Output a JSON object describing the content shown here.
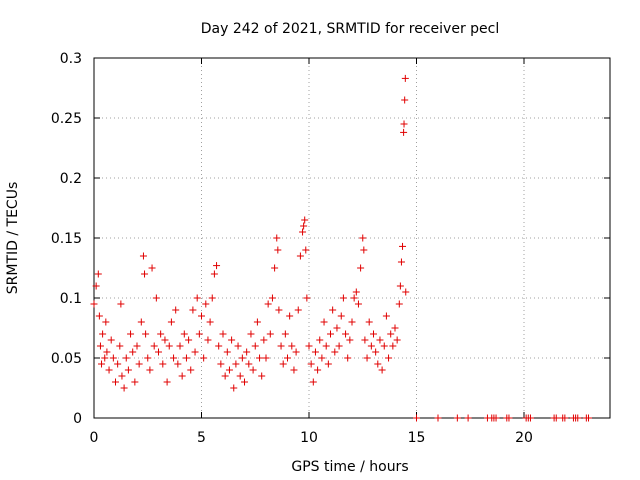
{
  "chart_data": {
    "type": "scatter",
    "title": "Day 242 of 2021, SRMTID for receiver pecl",
    "xlabel": "GPS time / hours",
    "ylabel": "SRMTID / TECUs",
    "xlim": [
      0,
      24
    ],
    "ylim": [
      0,
      0.3
    ],
    "x_ticks": [
      0,
      5,
      10,
      15,
      20
    ],
    "x_tick_labels": [
      "0",
      "5",
      "10",
      "15",
      "20"
    ],
    "y_ticks": [
      0,
      0.05,
      0.1,
      0.15,
      0.2,
      0.25,
      0.3
    ],
    "y_tick_labels": [
      "0",
      "0.05",
      "0.1",
      "0.15",
      "0.2",
      "0.25",
      "0.3"
    ],
    "grid": true,
    "marker": "+",
    "marker_color": "#e00000",
    "series": [
      {
        "name": "SRMTID",
        "points": [
          [
            0.0,
            0.095
          ],
          [
            0.1,
            0.11
          ],
          [
            0.2,
            0.12
          ],
          [
            0.25,
            0.085
          ],
          [
            0.3,
            0.06
          ],
          [
            0.35,
            0.045
          ],
          [
            0.4,
            0.07
          ],
          [
            0.5,
            0.05
          ],
          [
            0.55,
            0.08
          ],
          [
            0.6,
            0.055
          ],
          [
            0.7,
            0.04
          ],
          [
            0.8,
            0.065
          ],
          [
            0.9,
            0.05
          ],
          [
            1.0,
            0.03
          ],
          [
            1.1,
            0.045
          ],
          [
            1.2,
            0.06
          ],
          [
            1.25,
            0.095
          ],
          [
            1.3,
            0.035
          ],
          [
            1.4,
            0.025
          ],
          [
            1.5,
            0.05
          ],
          [
            1.6,
            0.04
          ],
          [
            1.7,
            0.07
          ],
          [
            1.8,
            0.055
          ],
          [
            1.9,
            0.03
          ],
          [
            2.0,
            0.06
          ],
          [
            2.1,
            0.045
          ],
          [
            2.2,
            0.08
          ],
          [
            2.3,
            0.135
          ],
          [
            2.35,
            0.12
          ],
          [
            2.4,
            0.07
          ],
          [
            2.5,
            0.05
          ],
          [
            2.6,
            0.04
          ],
          [
            2.7,
            0.125
          ],
          [
            2.8,
            0.06
          ],
          [
            2.9,
            0.1
          ],
          [
            3.0,
            0.055
          ],
          [
            3.1,
            0.07
          ],
          [
            3.2,
            0.045
          ],
          [
            3.3,
            0.065
          ],
          [
            3.4,
            0.03
          ],
          [
            3.5,
            0.06
          ],
          [
            3.6,
            0.08
          ],
          [
            3.7,
            0.05
          ],
          [
            3.8,
            0.09
          ],
          [
            3.9,
            0.045
          ],
          [
            4.0,
            0.06
          ],
          [
            4.1,
            0.035
          ],
          [
            4.2,
            0.07
          ],
          [
            4.3,
            0.05
          ],
          [
            4.4,
            0.065
          ],
          [
            4.5,
            0.04
          ],
          [
            4.6,
            0.09
          ],
          [
            4.7,
            0.055
          ],
          [
            4.8,
            0.1
          ],
          [
            4.9,
            0.07
          ],
          [
            5.0,
            0.085
          ],
          [
            5.1,
            0.05
          ],
          [
            5.2,
            0.095
          ],
          [
            5.3,
            0.065
          ],
          [
            5.4,
            0.08
          ],
          [
            5.5,
            0.1
          ],
          [
            5.6,
            0.12
          ],
          [
            5.7,
            0.127
          ],
          [
            5.8,
            0.06
          ],
          [
            5.9,
            0.045
          ],
          [
            6.0,
            0.07
          ],
          [
            6.1,
            0.035
          ],
          [
            6.2,
            0.055
          ],
          [
            6.3,
            0.04
          ],
          [
            6.4,
            0.065
          ],
          [
            6.5,
            0.025
          ],
          [
            6.6,
            0.045
          ],
          [
            6.7,
            0.06
          ],
          [
            6.8,
            0.035
          ],
          [
            6.9,
            0.05
          ],
          [
            7.0,
            0.03
          ],
          [
            7.1,
            0.055
          ],
          [
            7.2,
            0.045
          ],
          [
            7.3,
            0.07
          ],
          [
            7.4,
            0.04
          ],
          [
            7.5,
            0.06
          ],
          [
            7.6,
            0.08
          ],
          [
            7.7,
            0.05
          ],
          [
            7.8,
            0.035
          ],
          [
            7.9,
            0.065
          ],
          [
            8.0,
            0.05
          ],
          [
            8.1,
            0.095
          ],
          [
            8.2,
            0.07
          ],
          [
            8.3,
            0.1
          ],
          [
            8.4,
            0.125
          ],
          [
            8.5,
            0.15
          ],
          [
            8.55,
            0.14
          ],
          [
            8.6,
            0.09
          ],
          [
            8.7,
            0.06
          ],
          [
            8.8,
            0.045
          ],
          [
            8.9,
            0.07
          ],
          [
            9.0,
            0.05
          ],
          [
            9.1,
            0.085
          ],
          [
            9.2,
            0.06
          ],
          [
            9.3,
            0.04
          ],
          [
            9.4,
            0.055
          ],
          [
            9.5,
            0.09
          ],
          [
            9.6,
            0.135
          ],
          [
            9.7,
            0.155
          ],
          [
            9.75,
            0.16
          ],
          [
            9.8,
            0.165
          ],
          [
            9.85,
            0.14
          ],
          [
            9.9,
            0.1
          ],
          [
            10.0,
            0.06
          ],
          [
            10.1,
            0.045
          ],
          [
            10.2,
            0.03
          ],
          [
            10.3,
            0.055
          ],
          [
            10.4,
            0.04
          ],
          [
            10.5,
            0.065
          ],
          [
            10.6,
            0.05
          ],
          [
            10.7,
            0.08
          ],
          [
            10.8,
            0.06
          ],
          [
            10.9,
            0.045
          ],
          [
            11.0,
            0.07
          ],
          [
            11.1,
            0.09
          ],
          [
            11.2,
            0.055
          ],
          [
            11.3,
            0.075
          ],
          [
            11.4,
            0.06
          ],
          [
            11.5,
            0.085
          ],
          [
            11.6,
            0.1
          ],
          [
            11.7,
            0.07
          ],
          [
            11.8,
            0.05
          ],
          [
            11.9,
            0.065
          ],
          [
            12.0,
            0.08
          ],
          [
            12.1,
            0.1
          ],
          [
            12.2,
            0.105
          ],
          [
            12.3,
            0.095
          ],
          [
            12.4,
            0.125
          ],
          [
            12.5,
            0.15
          ],
          [
            12.55,
            0.14
          ],
          [
            12.6,
            0.065
          ],
          [
            12.7,
            0.05
          ],
          [
            12.8,
            0.08
          ],
          [
            12.9,
            0.06
          ],
          [
            13.0,
            0.07
          ],
          [
            13.1,
            0.055
          ],
          [
            13.2,
            0.045
          ],
          [
            13.3,
            0.065
          ],
          [
            13.4,
            0.04
          ],
          [
            13.5,
            0.06
          ],
          [
            13.6,
            0.085
          ],
          [
            13.7,
            0.05
          ],
          [
            13.8,
            0.07
          ],
          [
            13.9,
            0.06
          ],
          [
            14.0,
            0.075
          ],
          [
            14.1,
            0.065
          ],
          [
            14.2,
            0.095
          ],
          [
            14.25,
            0.11
          ],
          [
            14.3,
            0.13
          ],
          [
            14.35,
            0.143
          ],
          [
            14.4,
            0.238
          ],
          [
            14.42,
            0.245
          ],
          [
            14.45,
            0.265
          ],
          [
            14.48,
            0.283
          ],
          [
            14.5,
            0.105
          ],
          [
            16.0,
            0.0
          ],
          [
            16.9,
            0.0
          ],
          [
            17.4,
            0.0
          ],
          [
            18.3,
            0.0
          ],
          [
            18.5,
            0.0
          ],
          [
            18.6,
            0.0
          ],
          [
            18.7,
            0.0
          ],
          [
            19.2,
            0.0
          ],
          [
            19.3,
            0.0
          ],
          [
            20.1,
            0.0
          ],
          [
            20.2,
            0.0
          ],
          [
            20.3,
            0.0
          ],
          [
            21.4,
            0.0
          ],
          [
            21.5,
            0.0
          ],
          [
            21.8,
            0.0
          ],
          [
            21.9,
            0.0
          ],
          [
            22.3,
            0.0
          ],
          [
            22.4,
            0.0
          ],
          [
            22.5,
            0.0
          ],
          [
            22.9,
            0.0
          ],
          [
            23.0,
            0.0
          ],
          [
            15.0,
            0.0
          ]
        ]
      }
    ]
  }
}
